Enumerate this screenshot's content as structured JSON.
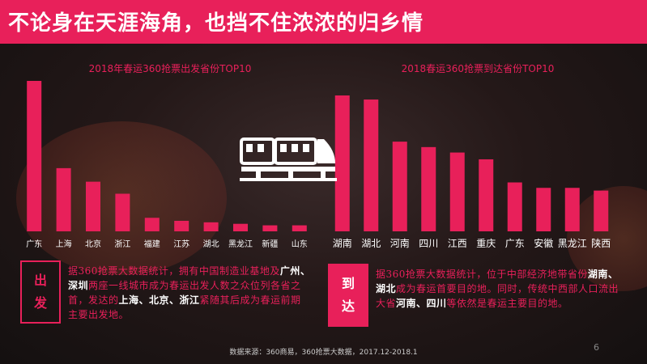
{
  "banner": {
    "title": "不论身在天涯海角，也挡不住浓浓的归乡情"
  },
  "chart_data": [
    {
      "type": "bar",
      "title": "2018年春运360抢票出发省份TOP10",
      "categories": [
        "广东",
        "上海",
        "北京",
        "浙江",
        "福建",
        "江苏",
        "湖北",
        "黑龙江",
        "新疆",
        "山东"
      ],
      "values": [
        100,
        42,
        33,
        25,
        9,
        7,
        6,
        5,
        4,
        4
      ],
      "color": "#e8205a"
    },
    {
      "type": "bar",
      "title": "2018春运360抢票到达省份TOP10",
      "categories": [
        "湖南",
        "湖北",
        "河南",
        "四川",
        "江西",
        "重庆",
        "广东",
        "安徽",
        "黑龙江",
        "陕西"
      ],
      "values": [
        100,
        97,
        66,
        62,
        58,
        53,
        36,
        32,
        32,
        30
      ],
      "color": "#e8205a"
    }
  ],
  "departure": {
    "tag_line1": "出",
    "tag_line2": "发",
    "text_parts": [
      {
        "t": "据360抢票大数据统计，拥有中国制造业基地及",
        "bold": false
      },
      {
        "t": "广州、深圳",
        "bold": true
      },
      {
        "t": "两座一线城市成为春运出发人数之",
        "bold": false
      },
      {
        "t": "众位列各省之首，发达的",
        "bold": false
      },
      {
        "t": "上海、北京、浙江",
        "bold": true
      },
      {
        "t": "紧随其后成为春运前期主要出发地。",
        "bold": false
      }
    ]
  },
  "arrival": {
    "tag_line1": "到",
    "tag_line2": "达",
    "text_parts": [
      {
        "t": "据360抢票大数据统计，位于中部经济地带省份",
        "bold": false
      },
      {
        "t": "湖南、湖北",
        "bold": true
      },
      {
        "t": "成为春运首要目的地。同时，传统",
        "bold": false
      },
      {
        "t": "中西部人口流出大省",
        "bold": false
      },
      {
        "t": "河南、四川",
        "bold": true
      },
      {
        "t": "等依然是春运主要目的地。",
        "bold": false
      }
    ]
  },
  "footer": {
    "source": "数据来源：360商易，360抢票大数据，2017.12-2018.1",
    "page_number": "6"
  }
}
